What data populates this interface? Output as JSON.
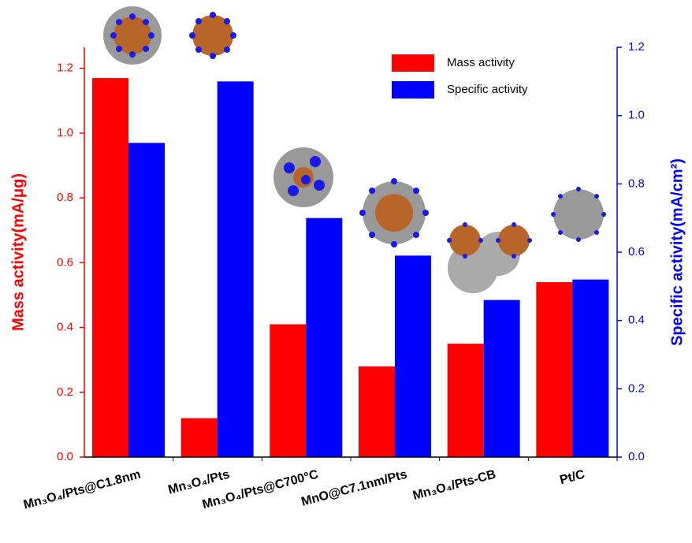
{
  "chart_data": {
    "type": "bar",
    "categories": [
      "Mn₃O₄/Pts@C1.8nm",
      "Mn₃O₄/Pts",
      "Mn₃O₄/Pts@C700°C",
      "MnO@C7.1nm/Pts",
      "Mn₃O₄/Pts-CB",
      "Pt/C"
    ],
    "y_label": "Mass activity(mA/μg)",
    "y2_label": "Specific activity(mA/cm²)",
    "series": [
      {
        "name": "Mass activity",
        "color": "#ff0000",
        "values": [
          1.17,
          0.12,
          0.41,
          0.28,
          0.35,
          0.54
        ]
      },
      {
        "name": "Specific activity",
        "color": "#0000ff",
        "axis": "y2",
        "values": [
          0.92,
          1.1,
          0.7,
          0.59,
          0.46,
          0.52
        ]
      }
    ],
    "ylim": [
      0,
      1.265
    ],
    "yticks": [
      {
        "value": 0,
        "label": "0.0"
      },
      0.2,
      0.4,
      0.6,
      0.8,
      {
        "value": 1,
        "label": "1.0"
      },
      1.2
    ],
    "y2lim": [
      0,
      1.2
    ],
    "y2ticks": [
      {
        "value": 0,
        "label": "0.0"
      },
      0.2,
      0.4,
      0.6,
      0.8,
      {
        "value": 1,
        "label": "1.0"
      },
      1.2
    ],
    "legend": "top-right"
  }
}
